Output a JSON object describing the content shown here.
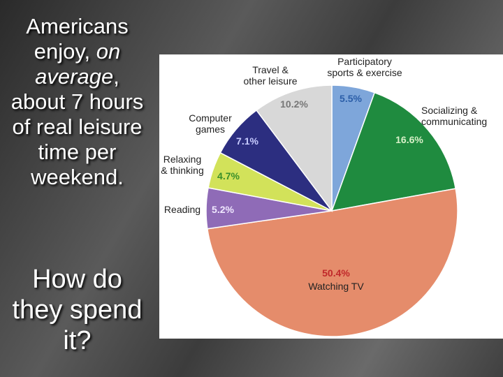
{
  "slide": {
    "text_parts": [
      "Americans enjoy, ",
      "on average",
      ", about 7 hours of real leisure time per weekend."
    ],
    "question": "How do they spend it?"
  },
  "chart_data": {
    "type": "pie",
    "categories": [
      "Participatory\nsports & exercise",
      "Socializing &\ncommunicating",
      "Watching TV",
      "Reading",
      "Relaxing\n& thinking",
      "Computer\ngames",
      "Travel &\nother leisure"
    ],
    "values": [
      5.5,
      16.6,
      50.4,
      5.2,
      4.7,
      7.1,
      10.2
    ],
    "value_labels": [
      "5.5%",
      "16.6%",
      "50.4%",
      "5.2%",
      "4.7%",
      "7.1%",
      "10.2%"
    ],
    "colors": [
      "#7ea6da",
      "#1f8b3f",
      "#e58c6b",
      "#8f6bb7",
      "#d2e25a",
      "#2c2e80",
      "#d8d8d8"
    ]
  }
}
